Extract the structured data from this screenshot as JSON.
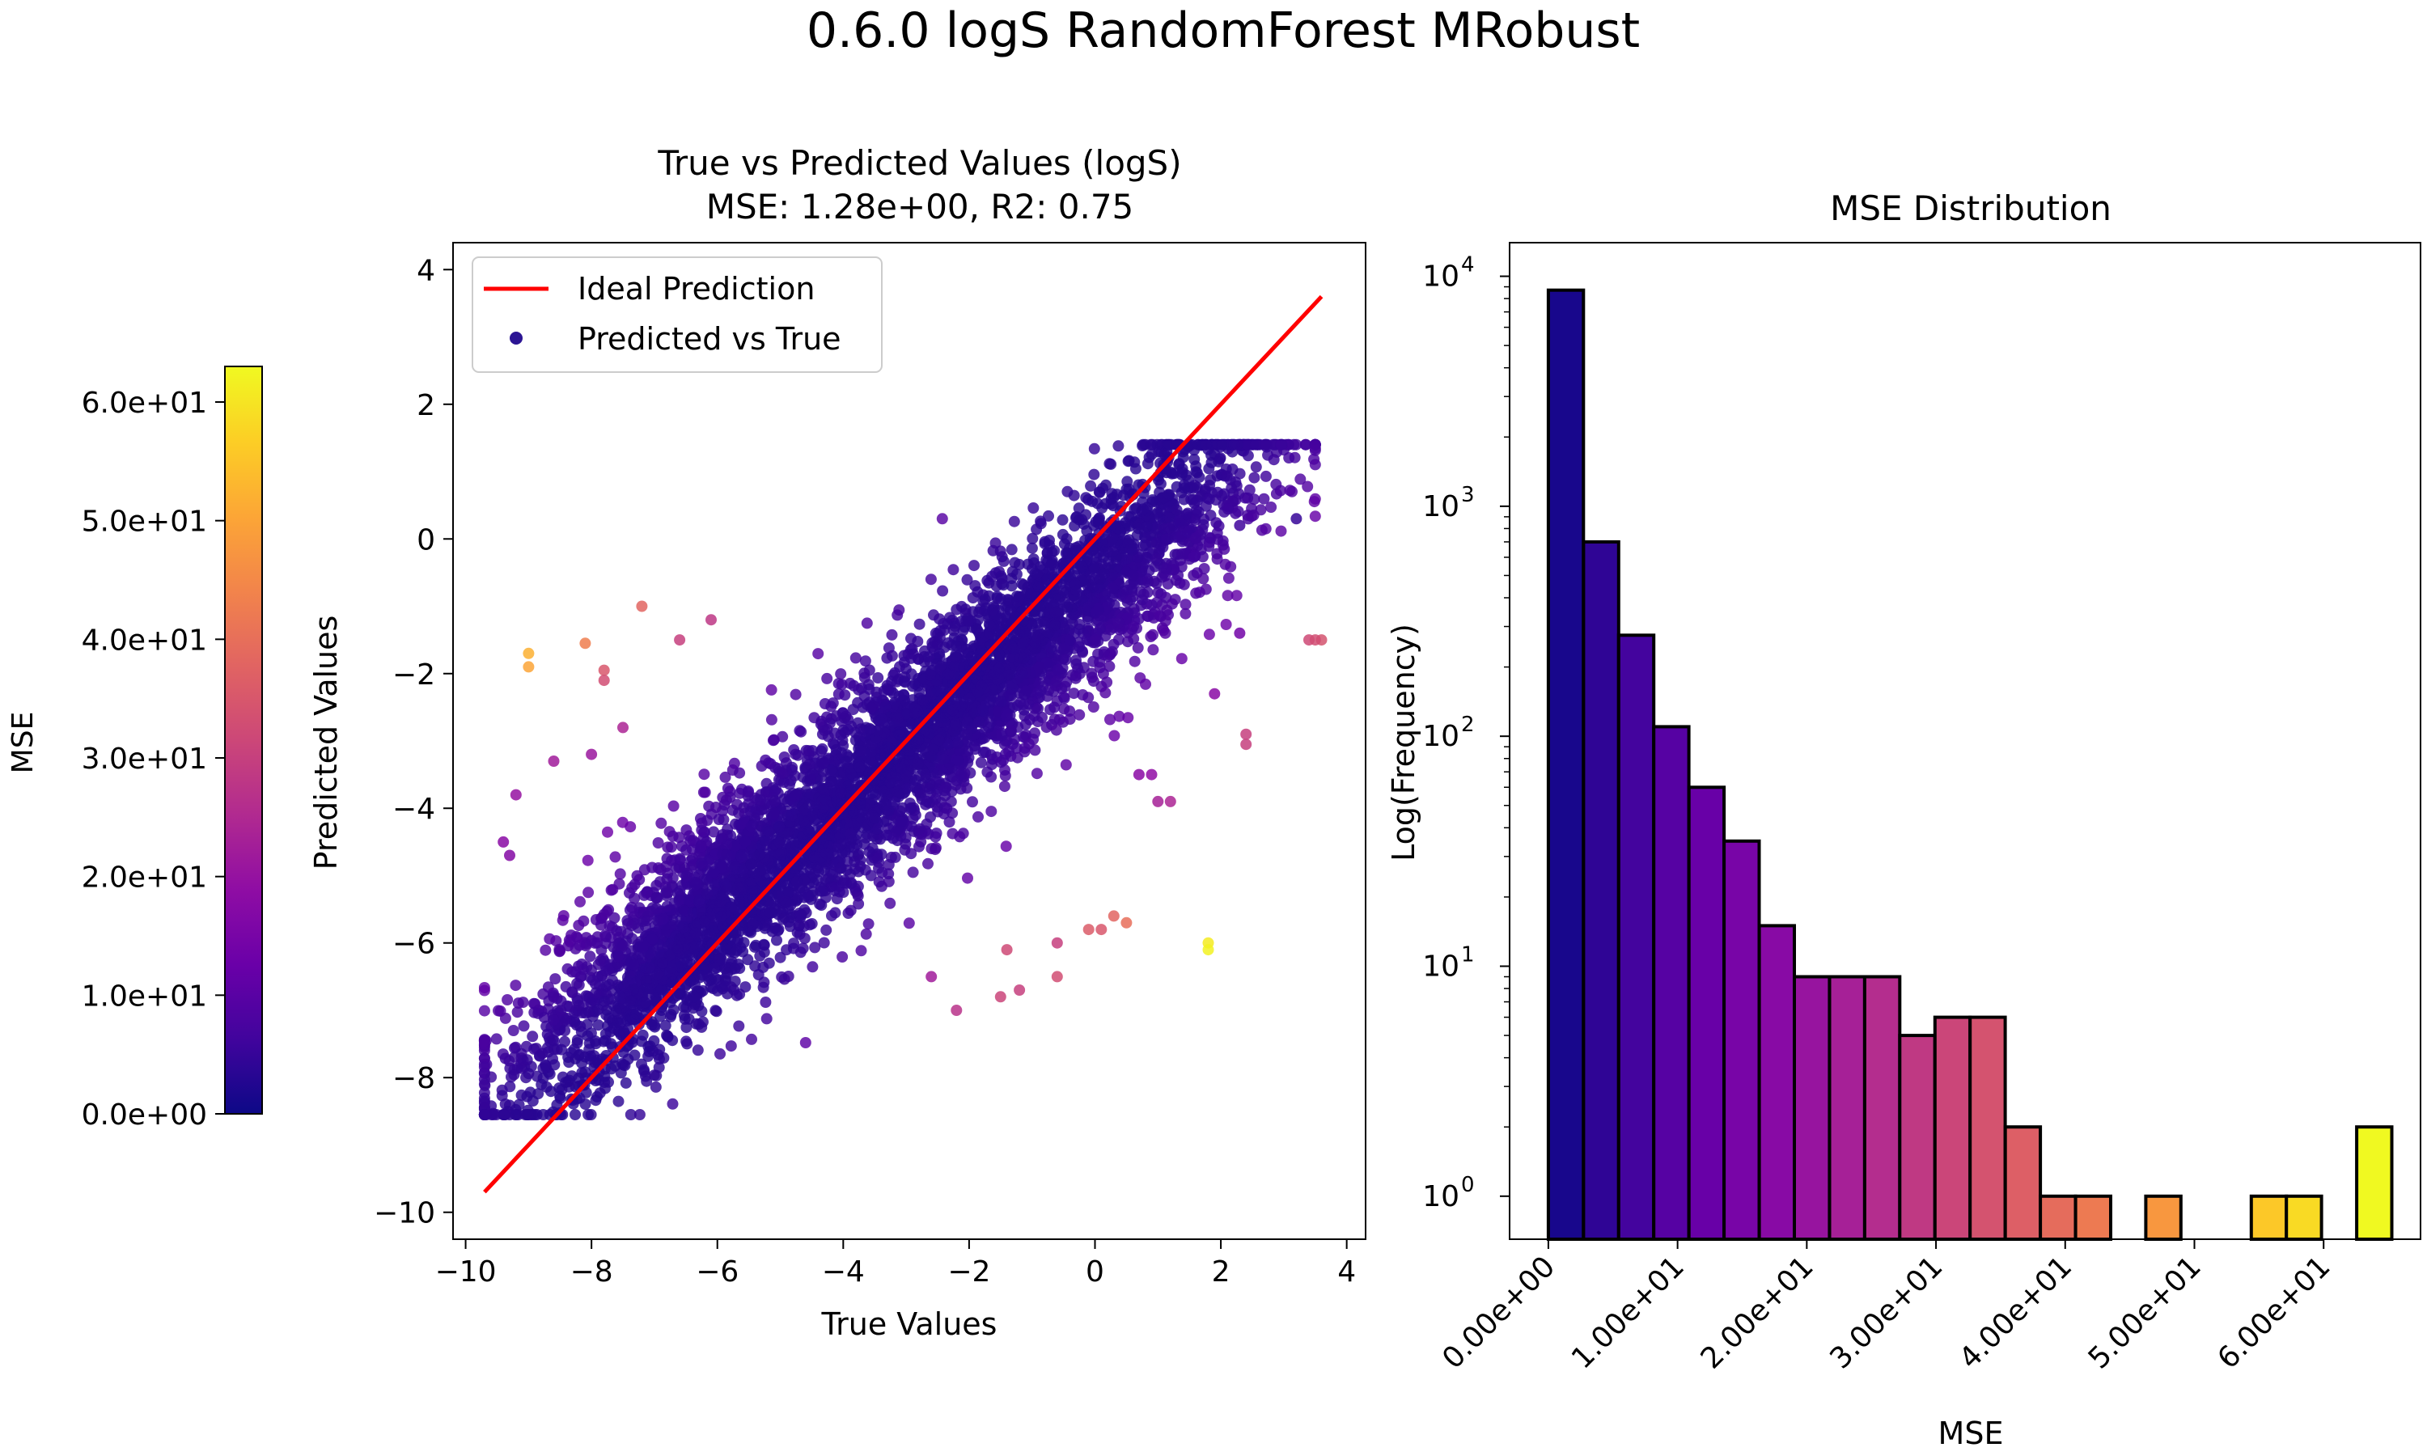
{
  "figure": {
    "suptitle": "0.6.0 logS RandomForest MRobust"
  },
  "colorbar": {
    "label": "MSE",
    "range": [
      0,
      63
    ],
    "ticks": [
      0,
      10,
      20,
      30,
      40,
      50,
      60
    ],
    "tick_labels": [
      "0.0e+00",
      "1.0e+01",
      "2.0e+01",
      "3.0e+01",
      "4.0e+01",
      "5.0e+01",
      "6.0e+01"
    ],
    "colormap": "plasma"
  },
  "chart_data": [
    {
      "type": "scatter",
      "title_line1": "True vs Predicted Values (logS)",
      "title_line2": "MSE: 1.28e+00, R2: 0.75",
      "xlabel": "True Values",
      "ylabel": "Predicted Values",
      "xlim": [
        -10.2,
        4.3
      ],
      "ylim": [
        -10.4,
        4.4
      ],
      "xticks": [
        -10,
        -8,
        -6,
        -4,
        -2,
        0,
        2,
        4
      ],
      "xtick_labels": [
        "−10",
        "−8",
        "−6",
        "−4",
        "−2",
        "0",
        "2",
        "4"
      ],
      "yticks": [
        -10,
        -8,
        -6,
        -4,
        -2,
        0,
        2,
        4
      ],
      "ytick_labels": [
        "−10",
        "−8",
        "−6",
        "−4",
        "−2",
        "0",
        "2",
        "4"
      ],
      "legend": {
        "position": "upper-left",
        "entries": [
          {
            "label": "Ideal Prediction",
            "kind": "line",
            "color": "#ff0000"
          },
          {
            "label": "Predicted vs True",
            "kind": "marker",
            "color": "#2c1594"
          }
        ]
      },
      "ideal_line": {
        "x": [
          -9.7,
          3.6
        ],
        "y": [
          -9.7,
          3.6
        ],
        "color": "#ff0000"
      },
      "outliers": [
        {
          "x": -9.0,
          "y": -1.7,
          "mse": 52
        },
        {
          "x": -9.0,
          "y": -1.9,
          "mse": 50
        },
        {
          "x": -8.1,
          "y": -1.55,
          "mse": 43
        },
        {
          "x": -7.2,
          "y": -1.0,
          "mse": 38
        },
        {
          "x": -6.6,
          "y": -1.5,
          "mse": 30
        },
        {
          "x": -7.8,
          "y": -1.95,
          "mse": 35
        },
        {
          "x": -7.8,
          "y": -2.1,
          "mse": 33
        },
        {
          "x": -6.1,
          "y": -1.2,
          "mse": 28
        },
        {
          "x": -7.5,
          "y": -2.8,
          "mse": 24
        },
        {
          "x": -8.6,
          "y": -3.3,
          "mse": 22
        },
        {
          "x": -9.2,
          "y": -3.8,
          "mse": 20
        },
        {
          "x": -8.0,
          "y": -3.2,
          "mse": 21
        },
        {
          "x": -9.4,
          "y": -4.5,
          "mse": 18
        },
        {
          "x": -9.3,
          "y": -4.7,
          "mse": 17
        },
        {
          "x": 3.6,
          "y": -1.5,
          "mse": 34
        },
        {
          "x": 3.4,
          "y": -1.5,
          "mse": 32
        },
        {
          "x": 3.5,
          "y": -1.5,
          "mse": 33
        },
        {
          "x": 2.3,
          "y": -1.4,
          "mse": 14
        },
        {
          "x": 2.4,
          "y": -2.9,
          "mse": 30
        },
        {
          "x": 2.4,
          "y": -3.05,
          "mse": 30
        },
        {
          "x": 1.9,
          "y": -2.3,
          "mse": 18
        },
        {
          "x": 1.8,
          "y": -6.0,
          "mse": 61
        },
        {
          "x": 1.8,
          "y": -6.1,
          "mse": 62
        },
        {
          "x": 0.5,
          "y": -5.7,
          "mse": 40
        },
        {
          "x": 0.3,
          "y": -5.6,
          "mse": 38
        },
        {
          "x": -0.1,
          "y": -5.8,
          "mse": 36
        },
        {
          "x": 0.1,
          "y": -5.8,
          "mse": 35
        },
        {
          "x": -0.6,
          "y": -6.5,
          "mse": 33
        },
        {
          "x": -1.4,
          "y": -6.1,
          "mse": 32
        },
        {
          "x": -1.5,
          "y": -6.8,
          "mse": 31
        },
        {
          "x": -1.2,
          "y": -6.7,
          "mse": 30
        },
        {
          "x": -0.6,
          "y": -6.0,
          "mse": 30
        },
        {
          "x": -2.2,
          "y": -7.0,
          "mse": 27
        },
        {
          "x": -2.6,
          "y": -6.5,
          "mse": 22
        },
        {
          "x": 0.7,
          "y": -3.5,
          "mse": 18
        },
        {
          "x": 0.9,
          "y": -3.5,
          "mse": 19
        },
        {
          "x": 1.0,
          "y": -3.9,
          "mse": 23
        },
        {
          "x": 1.2,
          "y": -3.9,
          "mse": 24
        },
        {
          "x": 2.3,
          "y": 0.2,
          "mse": 6
        },
        {
          "x": 3.2,
          "y": 0.3,
          "mse": 5
        }
      ]
    },
    {
      "type": "bar",
      "title": "MSE Distribution",
      "xlabel": "MSE",
      "ylabel": "Log(Frequency)",
      "yscale": "log",
      "ylim": [
        0.65,
        14000
      ],
      "xlim": [
        -3,
        67.5
      ],
      "yticks": [
        1,
        10,
        100,
        1000,
        10000
      ],
      "ytick_base": "10",
      "ytick_exponents": [
        "0",
        "1",
        "2",
        "3",
        "4"
      ],
      "xticks": [
        0,
        10,
        20,
        30,
        40,
        50,
        60
      ],
      "xtick_labels": [
        "0.00e+00",
        "1.00e+01",
        "2.00e+01",
        "3.00e+01",
        "4.00e+01",
        "5.00e+01",
        "6.00e+01"
      ],
      "bin_width": 2.72,
      "bins": [
        {
          "left": 0.0,
          "count": 8700
        },
        {
          "left": 2.72,
          "count": 700
        },
        {
          "left": 5.44,
          "count": 275
        },
        {
          "left": 8.16,
          "count": 110
        },
        {
          "left": 10.88,
          "count": 60
        },
        {
          "left": 13.6,
          "count": 35
        },
        {
          "left": 16.32,
          "count": 15
        },
        {
          "left": 19.04,
          "count": 9
        },
        {
          "left": 21.76,
          "count": 9
        },
        {
          "left": 24.48,
          "count": 9
        },
        {
          "left": 27.2,
          "count": 5
        },
        {
          "left": 29.92,
          "count": 6
        },
        {
          "left": 32.64,
          "count": 6
        },
        {
          "left": 35.36,
          "count": 2
        },
        {
          "left": 38.08,
          "count": 1
        },
        {
          "left": 40.8,
          "count": 1
        },
        {
          "left": 43.52,
          "count": 0
        },
        {
          "left": 46.24,
          "count": 1
        },
        {
          "left": 48.96,
          "count": 0
        },
        {
          "left": 51.68,
          "count": 0
        },
        {
          "left": 54.4,
          "count": 1
        },
        {
          "left": 57.12,
          "count": 1
        },
        {
          "left": 59.84,
          "count": 0
        },
        {
          "left": 62.56,
          "count": 2
        }
      ]
    }
  ]
}
